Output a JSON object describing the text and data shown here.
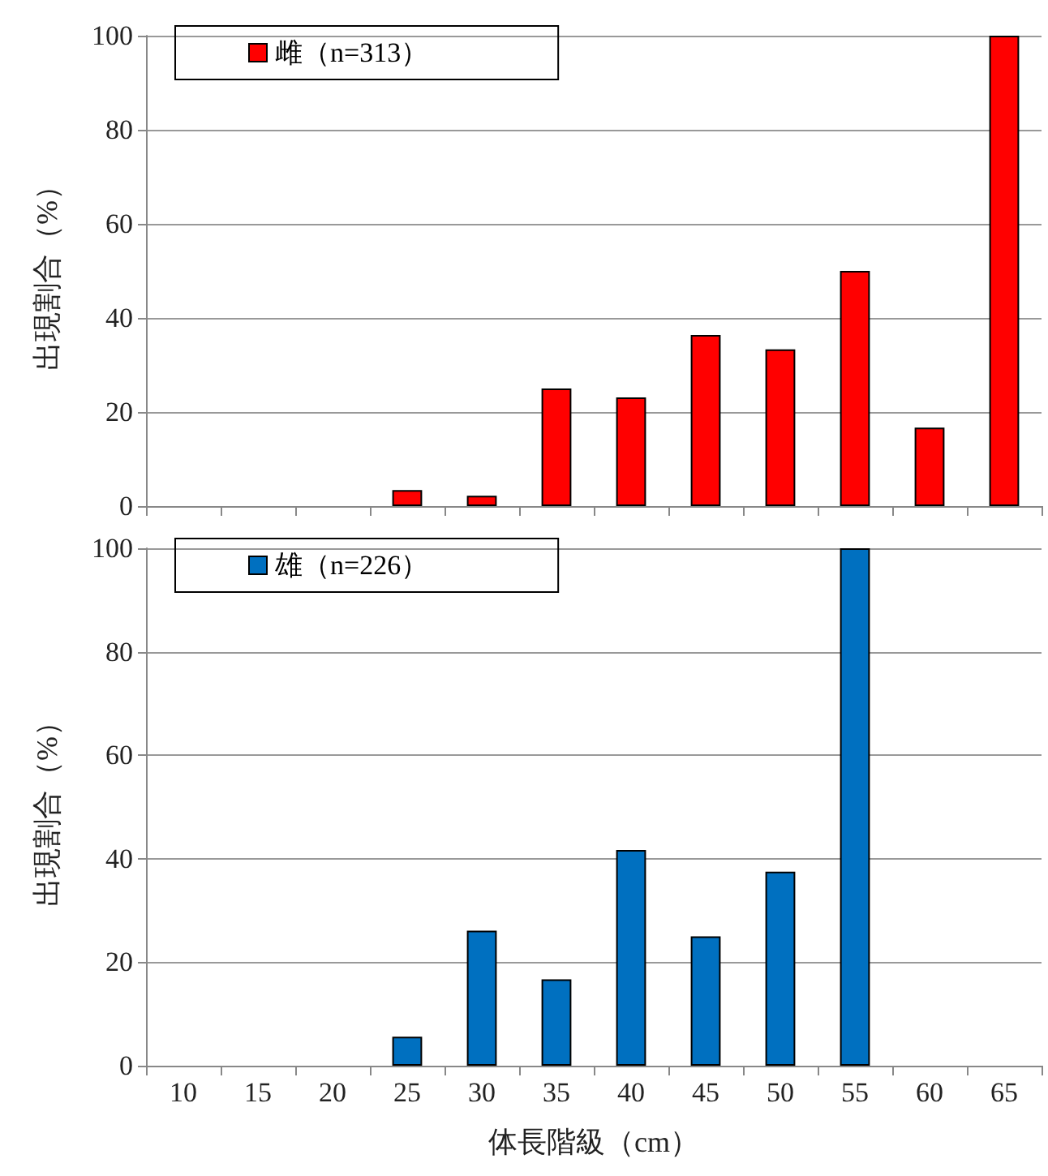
{
  "chart_data": [
    {
      "type": "bar",
      "ylabel": "出現割合（%）",
      "categories": [
        "10",
        "15",
        "20",
        "25",
        "30",
        "35",
        "40",
        "45",
        "50",
        "55",
        "60",
        "65"
      ],
      "series": [
        {
          "name": "雌（n=313）",
          "color": "#ff0000",
          "values": [
            0,
            0,
            0,
            3.4,
            2.2,
            25,
            23.1,
            36.4,
            33.3,
            50,
            16.7,
            100
          ]
        }
      ],
      "ylim": [
        0,
        100
      ],
      "yticks": [
        0,
        20,
        40,
        60,
        80,
        100
      ],
      "grid": "y",
      "legend": "top left",
      "tick_labels": "y"
    },
    {
      "type": "bar",
      "ylabel": "出現割合（%）",
      "xlabel": "体長階級（cm）",
      "categories": [
        "10",
        "15",
        "20",
        "25",
        "30",
        "35",
        "40",
        "45",
        "50",
        "55",
        "60",
        "65"
      ],
      "series": [
        {
          "name": "雄（n=226）",
          "color": "#0070c0",
          "values": [
            0,
            0,
            0,
            5.6,
            26.1,
            16.7,
            41.7,
            25,
            37.5,
            100,
            0,
            0
          ]
        }
      ],
      "ylim": [
        0,
        100
      ],
      "yticks": [
        0,
        20,
        40,
        60,
        80,
        100
      ],
      "grid": "y",
      "legend": "top left"
    }
  ]
}
